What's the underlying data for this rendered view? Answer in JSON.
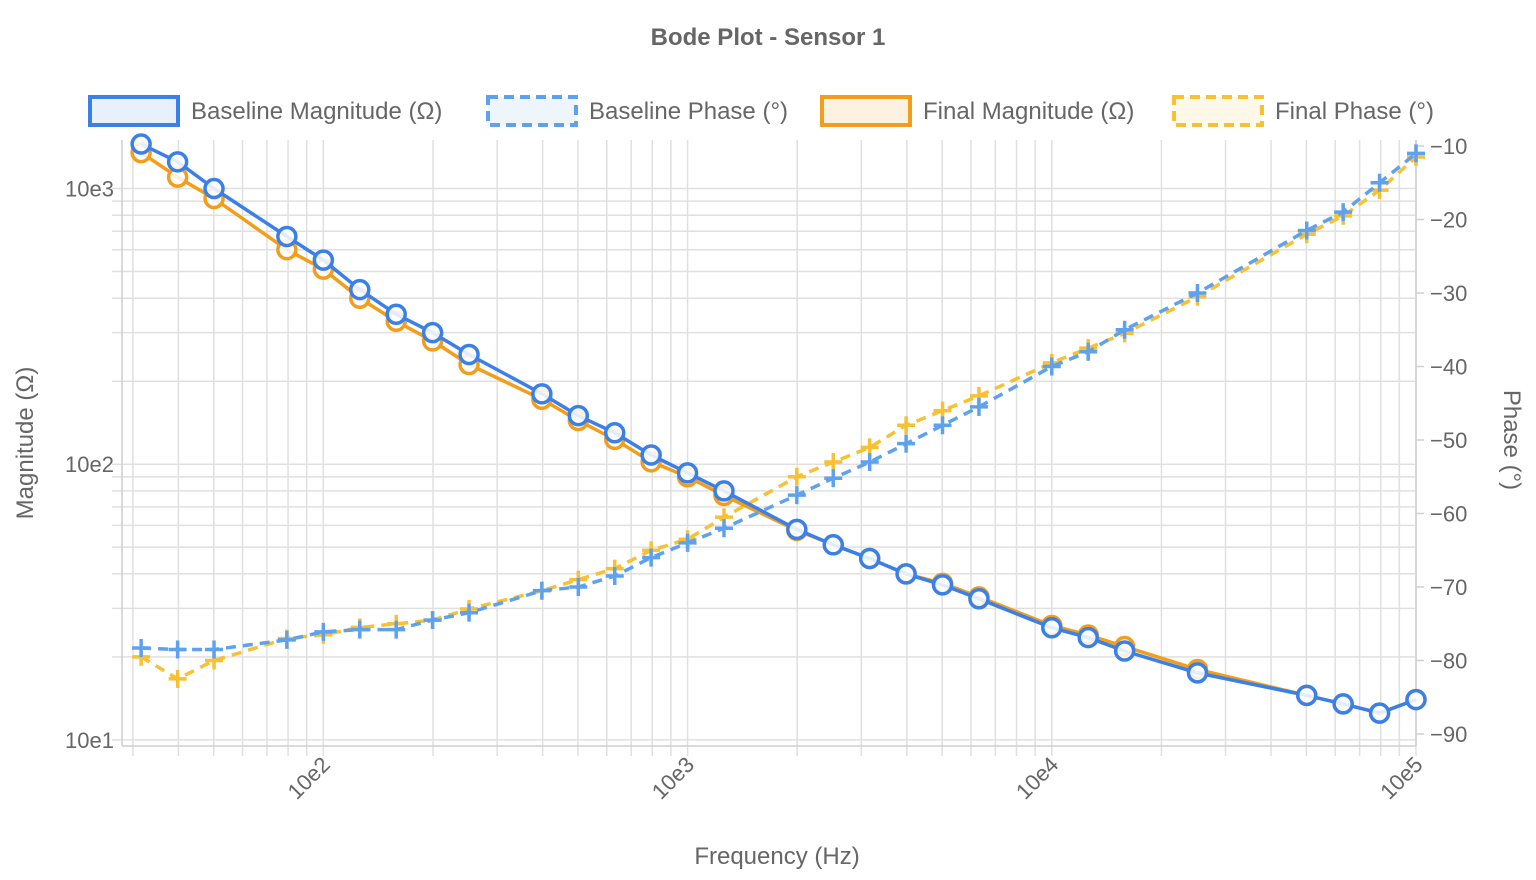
{
  "chart_data": {
    "type": "line",
    "title": "Bode Plot - Sensor 1",
    "xlabel": "Frequency (Hz)",
    "ylabel_left": "Magnitude (Ω)",
    "ylabel_right": "Phase (°)",
    "x_scale": "log",
    "y_left_scale": "log",
    "xlim": [
      28,
      100000
    ],
    "ylim_left": [
      9.5,
      1500
    ],
    "ylim_right": [
      -90,
      -10
    ],
    "x_ticks": [
      {
        "value": 100,
        "label": "10e2"
      },
      {
        "value": 1000,
        "label": "10e3"
      },
      {
        "value": 10000,
        "label": "10e4"
      },
      {
        "value": 100000,
        "label": "10e5"
      }
    ],
    "y_left_ticks": [
      {
        "value": 10,
        "label": "10e1"
      },
      {
        "value": 100,
        "label": "10e2"
      },
      {
        "value": 1000,
        "label": "10e3"
      }
    ],
    "y_right_ticks": [
      -10,
      -20,
      -30,
      -40,
      -50,
      -60,
      -70,
      -80,
      -90
    ],
    "legend_position": "top",
    "grid": true,
    "x": [
      31.6,
      39.8,
      50.1,
      79.4,
      100,
      125.9,
      158.5,
      199.5,
      251.2,
      398.1,
      501.2,
      631,
      794.3,
      1000,
      1258.9,
      1995.3,
      2511.9,
      3162.3,
      3981.1,
      5011.9,
      6309.6,
      10000,
      12589,
      15849,
      25119,
      50119,
      63096,
      79433,
      100000
    ],
    "series": [
      {
        "name": "Baseline Magnitude (Ω)",
        "axis": "left",
        "style": "solid",
        "marker": "circle",
        "color": "#3b7fe8",
        "values": [
          1450,
          1250,
          1000,
          670,
          550,
          430,
          350,
          300,
          250,
          180,
          150,
          130,
          108,
          93,
          80,
          58,
          51,
          45.5,
          40,
          36.5,
          32.5,
          25.5,
          23.5,
          21,
          17.5,
          14.5,
          13.5,
          12.5,
          14
        ]
      },
      {
        "name": "Baseline Phase (°)",
        "axis": "right",
        "style": "dashed",
        "marker": "plus",
        "color": "#5ea2ef",
        "values": [
          -78.3,
          -78.5,
          -78.5,
          -77.2,
          -76.1,
          -75.8,
          -75.8,
          -74.5,
          -73.5,
          -70.5,
          -70,
          -68.5,
          -66,
          -64,
          -62,
          -57.5,
          -55.2,
          -53,
          -50.5,
          -48,
          -45.5,
          -40,
          -38,
          -35,
          -30,
          -21.5,
          -19,
          -15,
          -11
        ]
      },
      {
        "name": "Final Magnitude (Ω)",
        "axis": "left",
        "style": "solid",
        "marker": "circle",
        "color": "#f29e1b",
        "values": [
          1350,
          1100,
          920,
          600,
          510,
          400,
          330,
          280,
          230,
          172,
          144,
          123,
          102,
          90,
          77,
          57.5,
          51,
          45.5,
          40,
          37,
          33,
          26,
          24,
          21.8,
          18,
          14.5,
          13.5,
          12.5,
          14
        ]
      },
      {
        "name": "Final Phase (°)",
        "axis": "right",
        "style": "dashed",
        "marker": "plus",
        "color": "#f7c133",
        "values": [
          -79.5,
          -82.5,
          -80,
          -77,
          -76.5,
          -75.5,
          -75,
          -74.5,
          -73,
          -70.5,
          -69,
          -67.5,
          -65,
          -63.5,
          -60.5,
          -55,
          -53,
          -51,
          -48,
          -46,
          -44,
          -39.5,
          -37.5,
          -35.5,
          -30.5,
          -22,
          -19.5,
          -16,
          -11.5
        ]
      }
    ]
  }
}
